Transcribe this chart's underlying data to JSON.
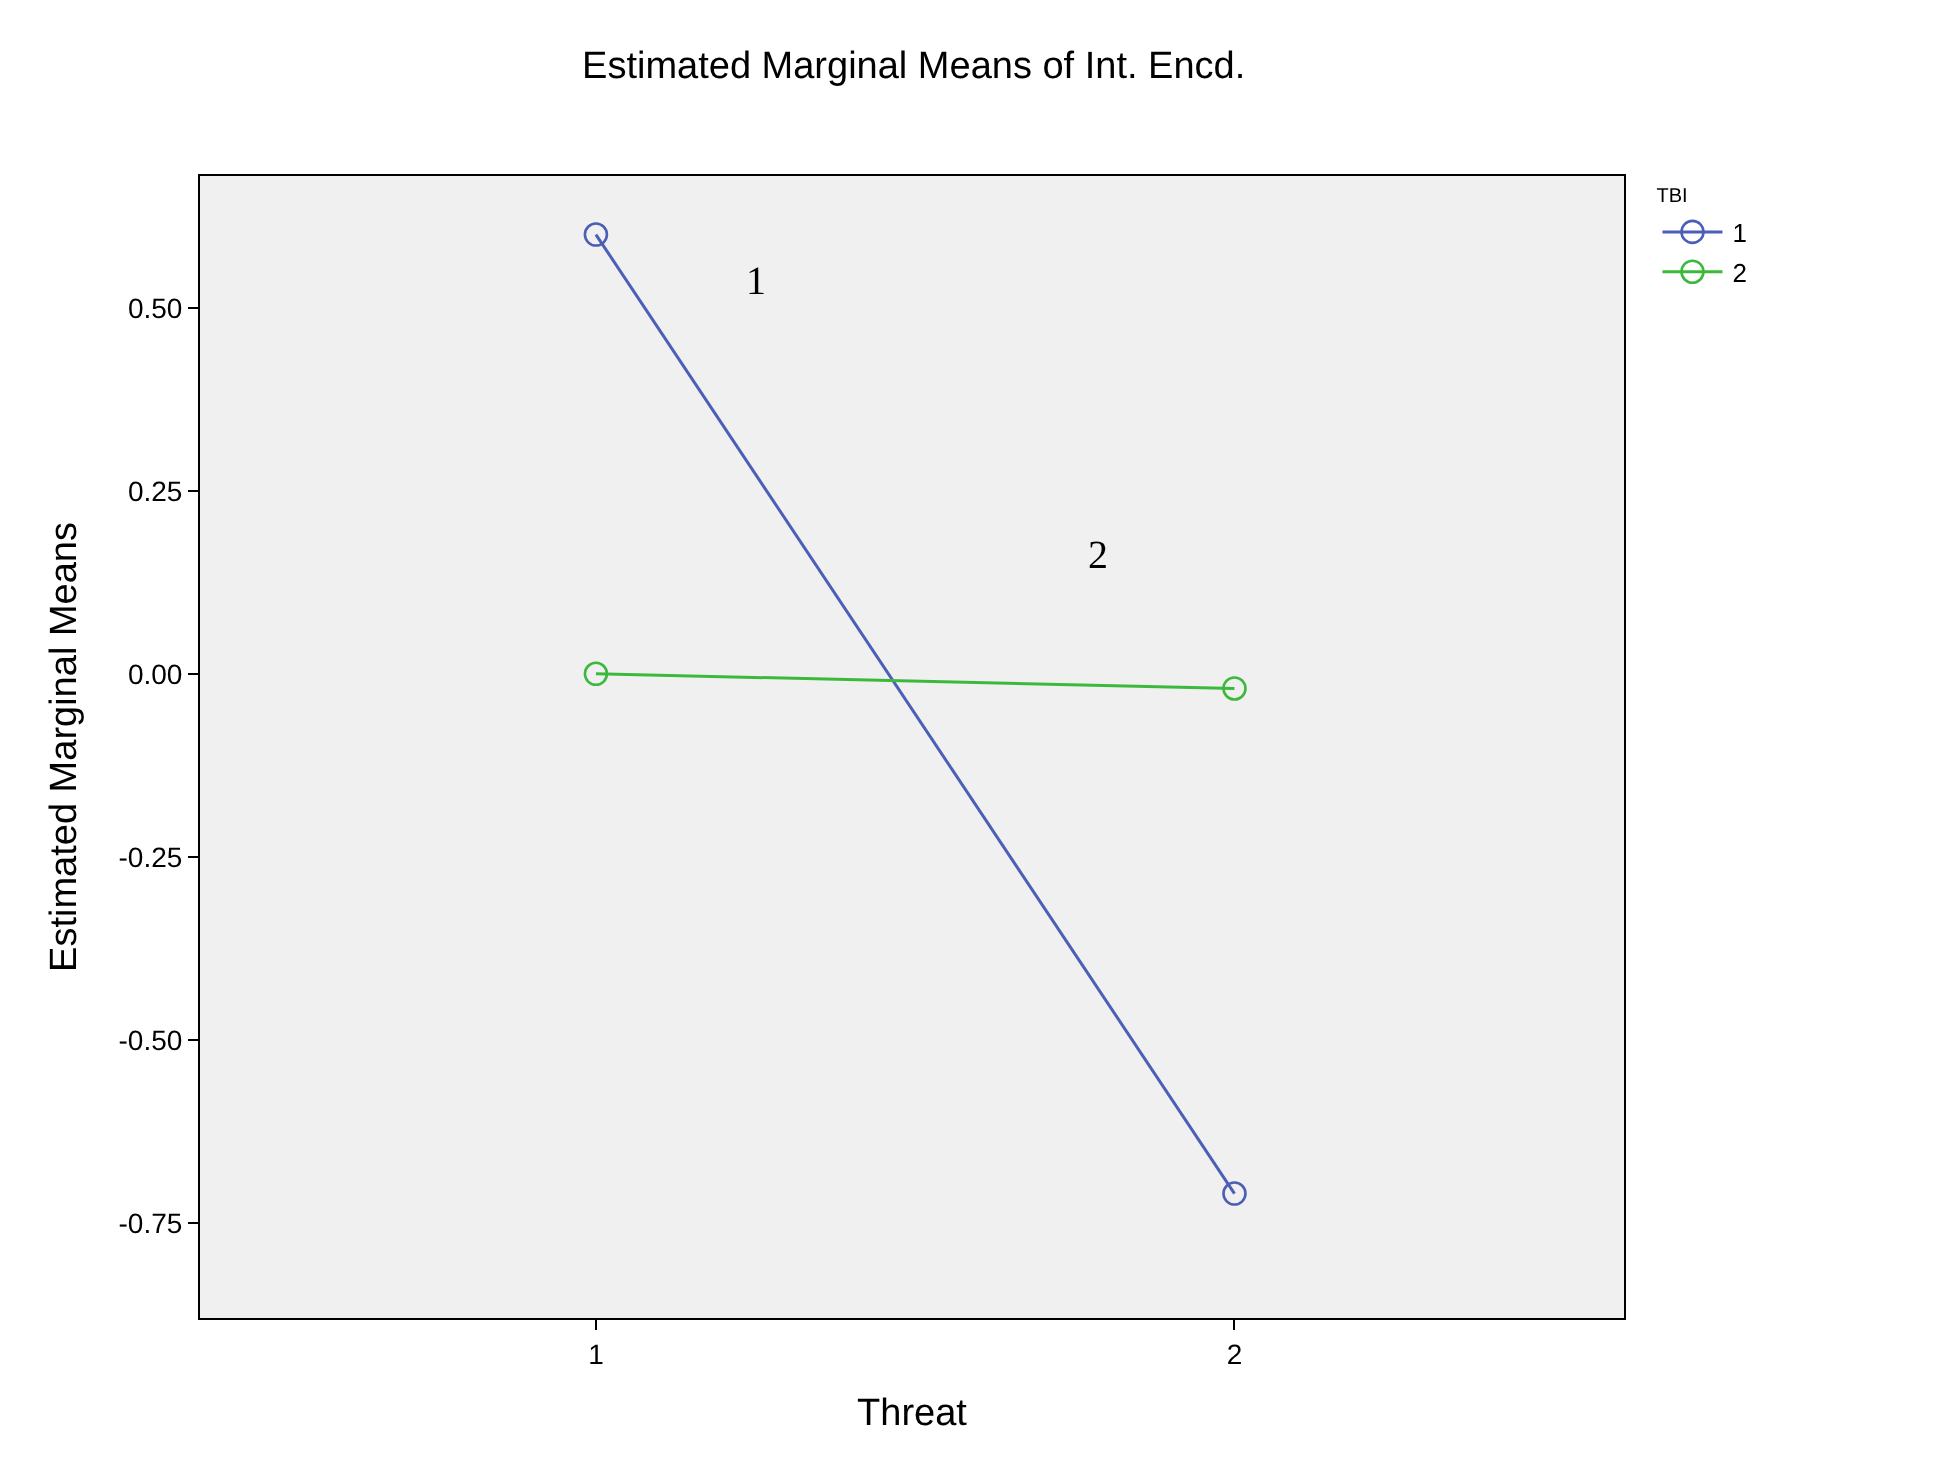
{
  "chart_data": {
    "type": "line",
    "title": "Estimated Marginal Means of Int. Encd.",
    "xlabel": "Threat",
    "ylabel": "Estimated Marginal Means",
    "legend_title": "TBI",
    "categories": [
      "1",
      "2"
    ],
    "series": [
      {
        "name": "1",
        "color": "#4a5fb5",
        "values": [
          0.6,
          -0.71
        ]
      },
      {
        "name": "2",
        "color": "#3cb93c",
        "values": [
          0.0,
          -0.02
        ]
      }
    ],
    "ylim": [
      -0.88,
      0.68
    ],
    "yticks": [
      {
        "value": -0.75,
        "label": "-0.75"
      },
      {
        "value": -0.5,
        "label": "-0.50"
      },
      {
        "value": -0.25,
        "label": "-0.25"
      },
      {
        "value": 0,
        "label": "0.00"
      },
      {
        "value": 0.25,
        "label": "0.25"
      },
      {
        "value": 0.5,
        "label": "0.50"
      }
    ],
    "annotations": [
      "1",
      "2"
    ],
    "marker": "circle",
    "line_style": "solid",
    "legend": "top right",
    "grid": false
  }
}
